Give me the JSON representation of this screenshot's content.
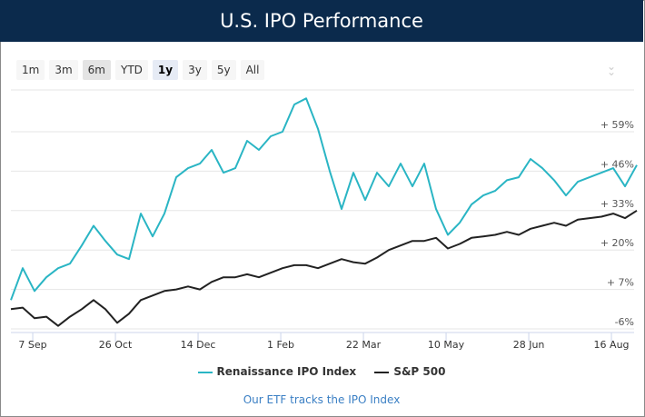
{
  "header": {
    "title": "U.S. IPO Performance"
  },
  "range_selector": {
    "buttons": [
      "1m",
      "3m",
      "6m",
      "YTD",
      "1y",
      "3y",
      "5y",
      "All"
    ],
    "active": "1y"
  },
  "menu_icon": "double-chevron-down-icon",
  "footer_link": "Our ETF tracks the IPO Index",
  "chart_data": {
    "type": "line",
    "title": "U.S. IPO Performance",
    "y_ticks": [
      "-6%",
      "+ 7%",
      "+ 20%",
      "+ 33%",
      "+ 46%",
      "+ 59%"
    ],
    "y_tick_values": [
      -6,
      7,
      20,
      33,
      46,
      59
    ],
    "x_ticks": [
      "7 Sep",
      "26 Oct",
      "14 Dec",
      "1 Feb",
      "22 Mar",
      "10 May",
      "28 Jun",
      "16 Aug"
    ],
    "grid": true,
    "legend_position": "bottom",
    "x": [
      "25 Aug",
      "1 Sep",
      "8 Sep",
      "15 Sep",
      "22 Sep",
      "29 Sep",
      "6 Oct",
      "13 Oct",
      "20 Oct",
      "27 Oct",
      "3 Nov",
      "10 Nov",
      "17 Nov",
      "24 Nov",
      "1 Dec",
      "8 Dec",
      "15 Dec",
      "22 Dec",
      "29 Dec",
      "5 Jan",
      "12 Jan",
      "19 Jan",
      "26 Jan",
      "2 Feb",
      "9 Feb",
      "16 Feb",
      "23 Feb",
      "1 Mar",
      "8 Mar",
      "15 Mar",
      "22 Mar",
      "29 Mar",
      "5 Apr",
      "12 Apr",
      "19 Apr",
      "26 Apr",
      "3 May",
      "10 May",
      "17 May",
      "24 May",
      "31 May",
      "7 Jun",
      "14 Jun",
      "21 Jun",
      "28 Jun",
      "5 Jul",
      "12 Jul",
      "19 Jul",
      "26 Jul",
      "2 Aug",
      "9 Aug",
      "16 Aug",
      "23 Aug",
      "30 Aug"
    ],
    "series": [
      {
        "name": "Renaissance IPO Index",
        "color": "#2ab5c4",
        "values": [
          3.5,
          14,
          6.5,
          11,
          14,
          15.5,
          21.5,
          28,
          23,
          18.5,
          17,
          32,
          24.5,
          32,
          44,
          47,
          48.5,
          53,
          45.5,
          47,
          56,
          53,
          57.5,
          59,
          68,
          70,
          60,
          46,
          33.5,
          45.5,
          36.5,
          45.5,
          41,
          48.5,
          41,
          48.5,
          33.5,
          25,
          29,
          35,
          38,
          39.5,
          43,
          44,
          50,
          47,
          43,
          38,
          42.5,
          44,
          45.5,
          47,
          41,
          48
        ]
      },
      {
        "name": "S&P 500",
        "color": "#222222",
        "values": [
          0.5,
          1,
          -2.5,
          -2,
          -5,
          -2,
          0.5,
          3.5,
          0.5,
          -4,
          -1,
          3.5,
          5,
          6.5,
          7,
          8,
          7,
          9.5,
          11,
          11,
          12,
          11,
          12.5,
          14,
          15,
          15,
          14,
          15.5,
          17,
          16,
          15.5,
          17.5,
          20,
          21.5,
          23,
          23,
          24,
          20.5,
          22,
          24,
          24.5,
          25,
          26,
          25,
          27,
          28,
          29,
          28,
          30,
          30.5,
          31,
          32,
          30.5,
          33
        ]
      }
    ]
  }
}
